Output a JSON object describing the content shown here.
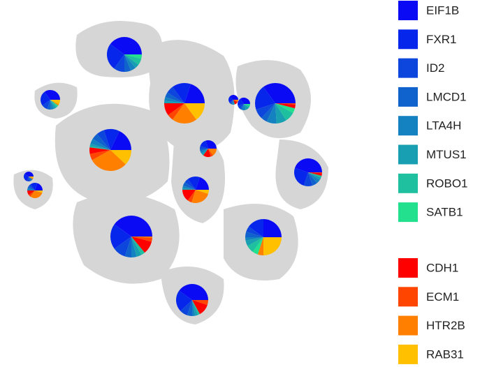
{
  "chart_data": {
    "type": "scatter-pie",
    "series": [
      {
        "name": "EIF1B",
        "color": "#0a0af5",
        "values": [
          40,
          35,
          20,
          40,
          35,
          35,
          18,
          30,
          45,
          40,
          20,
          20,
          40,
          25,
          40
        ]
      },
      {
        "name": "FXR1",
        "color": "#0626ec",
        "values": [
          25,
          25,
          15,
          20,
          20,
          20,
          12,
          15,
          25,
          30,
          15,
          15,
          20,
          15,
          22
        ]
      },
      {
        "name": "ID2",
        "color": "#0c46dc",
        "values": [
          10,
          10,
          6,
          5,
          10,
          8,
          6,
          5,
          10,
          10,
          5,
          5,
          10,
          5,
          8
        ]
      },
      {
        "name": "LMCD1",
        "color": "#1062cc",
        "values": [
          6,
          6,
          4,
          5,
          5,
          5,
          5,
          5,
          6,
          5,
          5,
          5,
          5,
          5,
          5
        ]
      },
      {
        "name": "LTA4H",
        "color": "#1482c0",
        "values": [
          5,
          5,
          3,
          5,
          10,
          8,
          4,
          5,
          5,
          5,
          5,
          3,
          4,
          3,
          3
        ]
      },
      {
        "name": "MTUS1",
        "color": "#18a0b2",
        "values": [
          4,
          4,
          2,
          5,
          10,
          8,
          2,
          5,
          3,
          0,
          0,
          2,
          4,
          5,
          3
        ]
      },
      {
        "name": "ROBO1",
        "color": "#1ec0a0",
        "values": [
          6,
          3,
          0,
          0,
          5,
          8,
          1,
          0,
          2,
          0,
          0,
          0,
          3,
          7,
          2
        ]
      },
      {
        "name": "SATB1",
        "color": "#22e08e",
        "values": [
          4,
          2,
          0,
          0,
          5,
          4,
          0,
          0,
          0,
          0,
          0,
          0,
          0,
          5,
          0
        ]
      },
      {
        "name": "CDH1",
        "color": "#ff0000",
        "values": [
          0,
          0,
          10,
          10,
          0,
          3,
          5,
          15,
          3,
          0,
          10,
          15,
          10,
          0,
          12
        ]
      },
      {
        "name": "ECM1",
        "color": "#ff4500",
        "values": [
          0,
          0,
          5,
          5,
          0,
          1,
          5,
          5,
          1,
          0,
          5,
          5,
          3,
          0,
          5
        ]
      },
      {
        "name": "HTR2B",
        "color": "#ff8000",
        "values": [
          0,
          2,
          20,
          5,
          0,
          0,
          30,
          15,
          0,
          5,
          30,
          25,
          1,
          5,
          0
        ]
      },
      {
        "name": "RAB31",
        "color": "#ffc000",
        "values": [
          0,
          8,
          15,
          0,
          0,
          0,
          12,
          0,
          0,
          5,
          5,
          5,
          0,
          25,
          0
        ]
      }
    ]
  }
}
